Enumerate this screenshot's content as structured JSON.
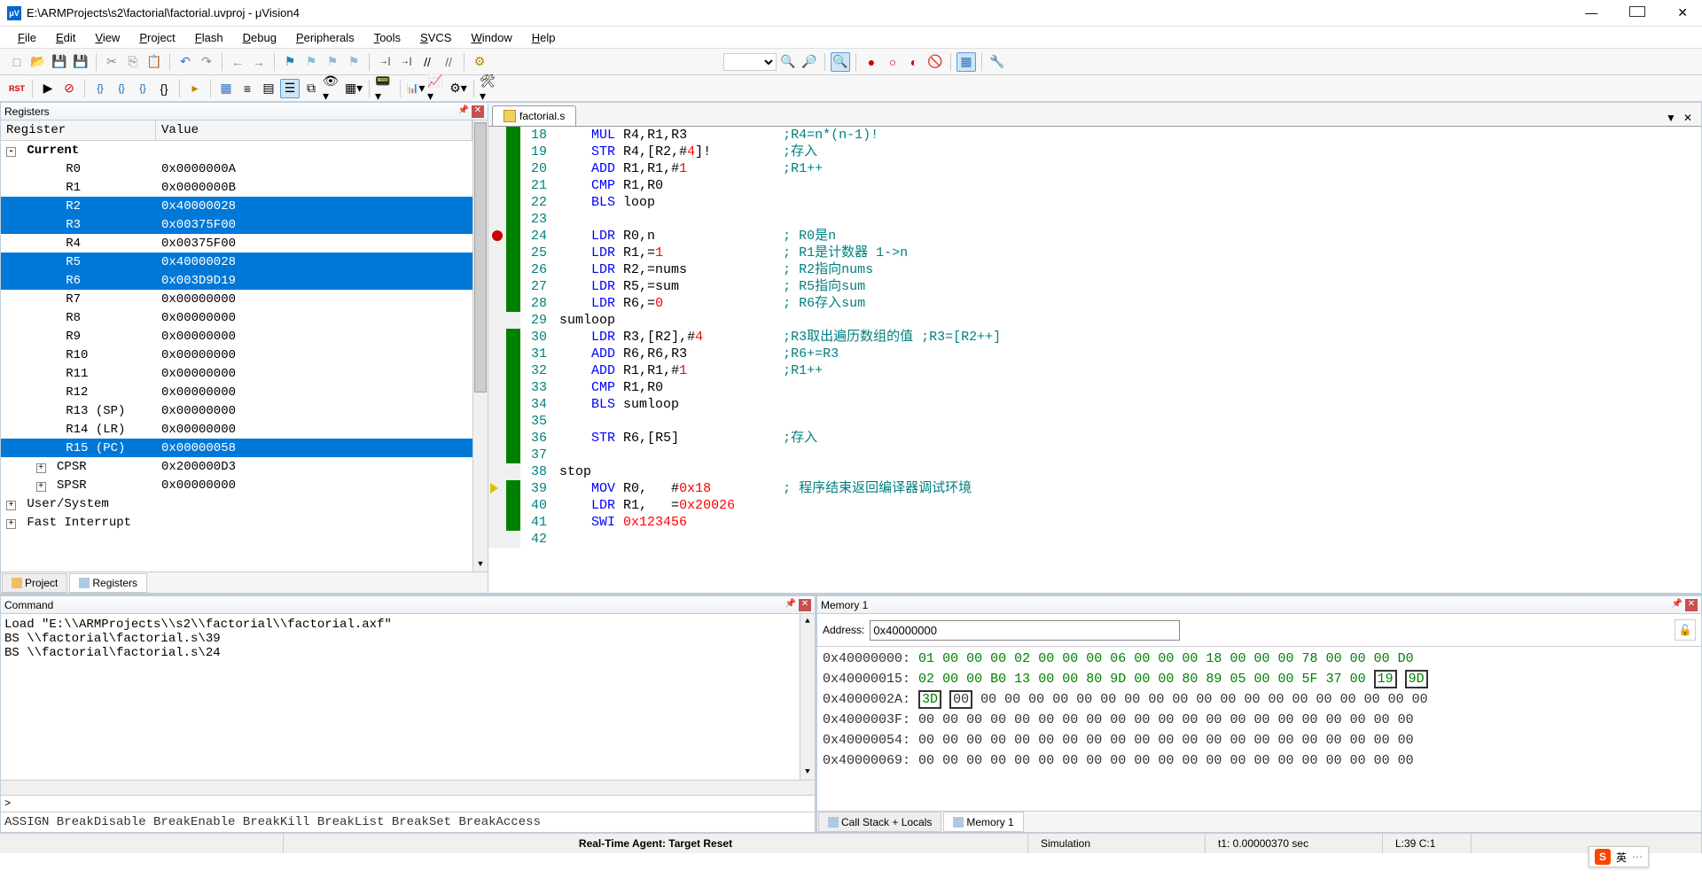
{
  "window": {
    "icon_text": "μV",
    "title": "E:\\ARMProjects\\s2\\factorial\\factorial.uvproj - μVision4",
    "min": "—",
    "close": "✕"
  },
  "menu": [
    "File",
    "Edit",
    "View",
    "Project",
    "Flash",
    "Debug",
    "Peripherals",
    "Tools",
    "SVCS",
    "Window",
    "Help"
  ],
  "registers_panel": {
    "title": "Registers",
    "columns": [
      "Register",
      "Value"
    ],
    "rows": [
      {
        "indent": 0,
        "label": "Current",
        "value": "",
        "bold": true,
        "ctrl": "-"
      },
      {
        "indent": 1,
        "label": "R0",
        "value": "0x0000000A"
      },
      {
        "indent": 1,
        "label": "R1",
        "value": "0x0000000B"
      },
      {
        "indent": 1,
        "label": "R2",
        "value": "0x40000028",
        "sel": true
      },
      {
        "indent": 1,
        "label": "R3",
        "value": "0x00375F00",
        "sel": true
      },
      {
        "indent": 1,
        "label": "R4",
        "value": "0x00375F00"
      },
      {
        "indent": 1,
        "label": "R5",
        "value": "0x40000028",
        "sel": true
      },
      {
        "indent": 1,
        "label": "R6",
        "value": "0x003D9D19",
        "sel": true
      },
      {
        "indent": 1,
        "label": "R7",
        "value": "0x00000000"
      },
      {
        "indent": 1,
        "label": "R8",
        "value": "0x00000000"
      },
      {
        "indent": 1,
        "label": "R9",
        "value": "0x00000000"
      },
      {
        "indent": 1,
        "label": "R10",
        "value": "0x00000000"
      },
      {
        "indent": 1,
        "label": "R11",
        "value": "0x00000000"
      },
      {
        "indent": 1,
        "label": "R12",
        "value": "0x00000000"
      },
      {
        "indent": 1,
        "label": "R13 (SP)",
        "value": "0x00000000"
      },
      {
        "indent": 1,
        "label": "R14 (LR)",
        "value": "0x00000000"
      },
      {
        "indent": 1,
        "label": "R15 (PC)",
        "value": "0x00000058",
        "sel": true
      },
      {
        "indent": 1,
        "label": "CPSR",
        "value": "0x200000D3",
        "ctrl": "+"
      },
      {
        "indent": 1,
        "label": "SPSR",
        "value": "0x00000000",
        "ctrl": "+"
      },
      {
        "indent": 0,
        "label": "User/System",
        "value": "",
        "ctrl": "+"
      },
      {
        "indent": 0,
        "label": "Fast Interrupt",
        "value": "",
        "ctrl": "+"
      }
    ],
    "tabs": [
      {
        "label": "Project",
        "icon": "folder",
        "active": false
      },
      {
        "label": "Registers",
        "icon": "grid",
        "active": true
      }
    ]
  },
  "editor": {
    "file": "factorial.s",
    "lines": [
      {
        "n": 18,
        "cov": "g",
        "code": [
          [
            "op",
            "MUL "
          ],
          [
            "reg",
            "R4"
          ],
          [
            "lbl",
            ","
          ],
          [
            "reg",
            "R1"
          ],
          [
            "lbl",
            ","
          ],
          [
            "reg",
            "R3"
          ]
        ],
        "cmt": ";R4=n*(n-1)!"
      },
      {
        "n": 19,
        "cov": "g",
        "code": [
          [
            "op",
            "STR "
          ],
          [
            "reg",
            "R4"
          ],
          [
            "lbl",
            ",["
          ],
          [
            "reg",
            "R2"
          ],
          [
            "lbl",
            ",#"
          ],
          [
            "num",
            "4"
          ],
          [
            "lbl",
            "]!"
          ]
        ],
        "cmt": ";存入"
      },
      {
        "n": 20,
        "cov": "g",
        "code": [
          [
            "op",
            "ADD "
          ],
          [
            "reg",
            "R1"
          ],
          [
            "lbl",
            ","
          ],
          [
            "reg",
            "R1"
          ],
          [
            "lbl",
            ",#"
          ],
          [
            "num",
            "1"
          ]
        ],
        "cmt": ";R1++"
      },
      {
        "n": 21,
        "cov": "g",
        "code": [
          [
            "op",
            "CMP "
          ],
          [
            "reg",
            "R1"
          ],
          [
            "lbl",
            ","
          ],
          [
            "reg",
            "R0"
          ]
        ],
        "cmt": ""
      },
      {
        "n": 22,
        "cov": "g",
        "code": [
          [
            "op",
            "BLS "
          ],
          [
            "lbl",
            "loop"
          ]
        ],
        "cmt": ""
      },
      {
        "n": 23,
        "cov": "g",
        "code": [],
        "cmt": ""
      },
      {
        "n": 24,
        "cov": "g",
        "bp": "dot",
        "code": [
          [
            "op",
            "LDR "
          ],
          [
            "reg",
            "R0"
          ],
          [
            "lbl",
            ",n"
          ]
        ],
        "cmt": "; R0是n"
      },
      {
        "n": 25,
        "cov": "g",
        "code": [
          [
            "op",
            "LDR "
          ],
          [
            "reg",
            "R1"
          ],
          [
            "lbl",
            ",="
          ],
          [
            "num",
            "1"
          ]
        ],
        "cmt": "; R1是计数器 1->n"
      },
      {
        "n": 26,
        "cov": "g",
        "code": [
          [
            "op",
            "LDR "
          ],
          [
            "reg",
            "R2"
          ],
          [
            "lbl",
            ",=nums"
          ]
        ],
        "cmt": "; R2指向nums"
      },
      {
        "n": 27,
        "cov": "g",
        "code": [
          [
            "op",
            "LDR "
          ],
          [
            "reg",
            "R5"
          ],
          [
            "lbl",
            ",=sum"
          ]
        ],
        "cmt": "; R5指向sum"
      },
      {
        "n": 28,
        "cov": "g",
        "code": [
          [
            "op",
            "LDR "
          ],
          [
            "reg",
            "R6"
          ],
          [
            "lbl",
            ",="
          ],
          [
            "num",
            "0"
          ]
        ],
        "cmt": "; R6存入sum"
      },
      {
        "n": 29,
        "cov": "n",
        "code": [
          [
            "lbl",
            "sumloop"
          ]
        ],
        "noindent": true,
        "cmt": ""
      },
      {
        "n": 30,
        "cov": "g",
        "code": [
          [
            "op",
            "LDR "
          ],
          [
            "reg",
            "R3"
          ],
          [
            "lbl",
            ",["
          ],
          [
            "reg",
            "R2"
          ],
          [
            "lbl",
            "],#"
          ],
          [
            "num",
            "4"
          ]
        ],
        "cmt": ";R3取出遍历数组的值 ;R3=[R2++]"
      },
      {
        "n": 31,
        "cov": "g",
        "code": [
          [
            "op",
            "ADD "
          ],
          [
            "reg",
            "R6"
          ],
          [
            "lbl",
            ","
          ],
          [
            "reg",
            "R6"
          ],
          [
            "lbl",
            ","
          ],
          [
            "reg",
            "R3"
          ]
        ],
        "cmt": ";R6+=R3"
      },
      {
        "n": 32,
        "cov": "g",
        "code": [
          [
            "op",
            "ADD "
          ],
          [
            "reg",
            "R1"
          ],
          [
            "lbl",
            ","
          ],
          [
            "reg",
            "R1"
          ],
          [
            "lbl",
            ",#"
          ],
          [
            "num",
            "1"
          ]
        ],
        "cmt": ";R1++"
      },
      {
        "n": 33,
        "cov": "g",
        "code": [
          [
            "op",
            "CMP "
          ],
          [
            "reg",
            "R1"
          ],
          [
            "lbl",
            ","
          ],
          [
            "reg",
            "R0"
          ]
        ],
        "cmt": ""
      },
      {
        "n": 34,
        "cov": "g",
        "code": [
          [
            "op",
            "BLS "
          ],
          [
            "lbl",
            "sumloop"
          ]
        ],
        "cmt": ""
      },
      {
        "n": 35,
        "cov": "g",
        "code": [],
        "cmt": ""
      },
      {
        "n": 36,
        "cov": "g",
        "code": [
          [
            "op",
            "STR "
          ],
          [
            "reg",
            "R6"
          ],
          [
            "lbl",
            ",["
          ],
          [
            "reg",
            "R5"
          ],
          [
            "lbl",
            "]"
          ]
        ],
        "cmt": ";存入"
      },
      {
        "n": 37,
        "cov": "g",
        "code": [],
        "cmt": ""
      },
      {
        "n": 38,
        "cov": "n",
        "code": [
          [
            "lbl",
            "stop"
          ]
        ],
        "noindent": true,
        "cmt": ""
      },
      {
        "n": 39,
        "cov": "g",
        "bp": "cur",
        "code": [
          [
            "op",
            "MOV "
          ],
          [
            "reg",
            "R0"
          ],
          [
            "lbl",
            ",   #"
          ],
          [
            "num",
            "0x18"
          ]
        ],
        "cmt": "; 程序结束返回编译器调试环境"
      },
      {
        "n": 40,
        "cov": "g",
        "code": [
          [
            "op",
            "LDR "
          ],
          [
            "reg",
            "R1"
          ],
          [
            "lbl",
            ",   ="
          ],
          [
            "num",
            "0x20026"
          ]
        ],
        "cmt": ""
      },
      {
        "n": 41,
        "cov": "g",
        "code": [
          [
            "op",
            "SWI "
          ],
          [
            "num",
            "0x123456"
          ]
        ],
        "cmt": ""
      },
      {
        "n": 42,
        "cov": "n",
        "code": [],
        "cmt": ""
      }
    ]
  },
  "command": {
    "title": "Command",
    "lines": [
      "Load \"E:\\\\ARMProjects\\\\s2\\\\factorial\\\\factorial.axf\"",
      "BS \\\\factorial\\factorial.s\\39",
      "BS \\\\factorial\\factorial.s\\24"
    ],
    "prompt": ">",
    "hints": "ASSIGN BreakDisable BreakEnable BreakKill BreakList BreakSet BreakAccess"
  },
  "memory": {
    "title": "Memory 1",
    "addr_label": "Address:",
    "addr_value": "0x40000000",
    "rows": [
      {
        "addr": "0x40000000:",
        "bytes": [
          "01",
          "00",
          "00",
          "00",
          "02",
          "00",
          "00",
          "00",
          "06",
          "00",
          "00",
          "00",
          "18",
          "00",
          "00",
          "00",
          "78",
          "00",
          "00",
          "00",
          "D0"
        ],
        "allgreen": true
      },
      {
        "addr": "0x40000015:",
        "bytes": [
          "02",
          "00",
          "00",
          "B0",
          "13",
          "00",
          "00",
          "80",
          "9D",
          "00",
          "00",
          "80",
          "89",
          "05",
          "00",
          "00",
          "5F",
          "37",
          "00",
          "19",
          "9D"
        ],
        "allgreen": true,
        "box_from": 19
      },
      {
        "addr": "0x4000002A:",
        "bytes": [
          "3D",
          "00",
          "00",
          "00",
          "00",
          "00",
          "00",
          "00",
          "00",
          "00",
          "00",
          "00",
          "00",
          "00",
          "00",
          "00",
          "00",
          "00",
          "00",
          "00",
          "00"
        ],
        "box_to": 1
      },
      {
        "addr": "0x4000003F:",
        "bytes": [
          "00",
          "00",
          "00",
          "00",
          "00",
          "00",
          "00",
          "00",
          "00",
          "00",
          "00",
          "00",
          "00",
          "00",
          "00",
          "00",
          "00",
          "00",
          "00",
          "00",
          "00"
        ]
      },
      {
        "addr": "0x40000054:",
        "bytes": [
          "00",
          "00",
          "00",
          "00",
          "00",
          "00",
          "00",
          "00",
          "00",
          "00",
          "00",
          "00",
          "00",
          "00",
          "00",
          "00",
          "00",
          "00",
          "00",
          "00",
          "00"
        ]
      },
      {
        "addr": "0x40000069:",
        "bytes": [
          "00",
          "00",
          "00",
          "00",
          "00",
          "00",
          "00",
          "00",
          "00",
          "00",
          "00",
          "00",
          "00",
          "00",
          "00",
          "00",
          "00",
          "00",
          "00",
          "00",
          "00"
        ]
      }
    ],
    "tabs": [
      {
        "label": "Call Stack + Locals",
        "active": false
      },
      {
        "label": "Memory 1",
        "active": true
      }
    ]
  },
  "status": {
    "center": "Real-Time Agent: Target Reset",
    "sim": "Simulation",
    "time": "t1: 0.00000370 sec",
    "pos": "L:39 C:1"
  },
  "ime": {
    "label": "英"
  }
}
